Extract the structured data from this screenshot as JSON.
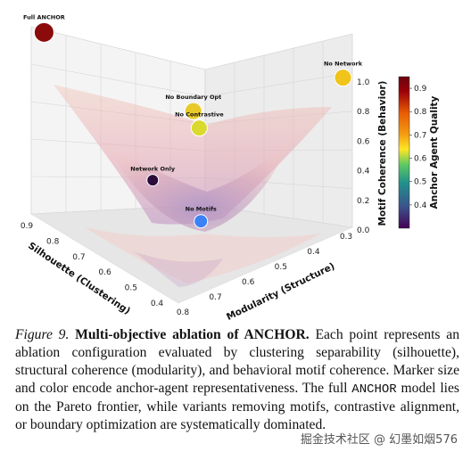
{
  "chart_data": {
    "type": "scatter",
    "xlabel": "Silhouette (Clustering)",
    "ylabel": "Modularity (Structure)",
    "zlabel": "Motif Coherence (Behavior)",
    "colorbar_label": "Anchor Agent Quality",
    "x_ticks": [
      "0.9",
      "0.8",
      "0.7",
      "0.6",
      "0.5",
      "0.4"
    ],
    "y_ticks": [
      "0.8",
      "0.7",
      "0.6",
      "0.5",
      "0.4",
      "0.3"
    ],
    "z_ticks": [
      "0.0",
      "0.2",
      "0.4",
      "0.6",
      "0.8",
      "1.0"
    ],
    "colorbar_ticks": [
      "0.4",
      "0.5",
      "0.6",
      "0.7",
      "0.8",
      "0.9"
    ],
    "colorbar_range": [
      0.3,
      0.95
    ],
    "colormap": [
      "#440154",
      "#3b528b",
      "#21918c",
      "#5ec962",
      "#fde725",
      "#f39c12",
      "#e85d04",
      "#9d0208",
      "#6a040f"
    ],
    "surface_color": "#e8a0a0",
    "grid": true,
    "points": [
      {
        "label": "Full ANCHOR",
        "silhouette": 0.88,
        "modularity": 0.78,
        "motif": 0.95,
        "quality": 0.93,
        "color": "#8b0a0a",
        "size": 11,
        "label_color": "#8b0a0a"
      },
      {
        "label": "No Network",
        "silhouette": 0.42,
        "modularity": 0.31,
        "motif": 0.77,
        "quality": 0.72,
        "color": "#f0c419",
        "size": 9.5
      },
      {
        "label": "No Boundary Opt",
        "silhouette": 0.68,
        "modularity": 0.52,
        "motif": 0.52,
        "quality": 0.7,
        "color": "#e9c92a",
        "size": 9.5
      },
      {
        "label": "No Contrastive",
        "silhouette": 0.66,
        "modularity": 0.52,
        "motif": 0.45,
        "quality": 0.68,
        "color": "#d9d92e",
        "size": 9
      },
      {
        "label": "Network Only",
        "silhouette": 0.7,
        "modularity": 0.62,
        "motif": 0.22,
        "quality": 0.31,
        "color": "#2a0b3a",
        "size": 6.5
      },
      {
        "label": "No Motifs",
        "silhouette": 0.56,
        "modularity": 0.6,
        "motif": 0.12,
        "quality": 0.38,
        "color": "#3b82f6",
        "size": 7.5
      }
    ]
  },
  "caption": {
    "figure_label": "Figure 9.",
    "title_prefix": "Multi-objective ablation of ",
    "title_anchor": "ANCHOR",
    "title_suffix": ".",
    "body_1": " Each point represents an ablation configuration evaluated by clustering separability (silhouette), structural coherence (modularity), and behavioral motif coherence. Marker size and color encode anchor-agent representativeness. The full ",
    "body_anchor": "ANCHOR",
    "body_2": " model lies on the Pareto frontier, while variants removing motifs, contrastive alignment, or boundary optimization are systematically dominated."
  },
  "watermark": "掘金技术社区 @ 幻墨如烟576"
}
